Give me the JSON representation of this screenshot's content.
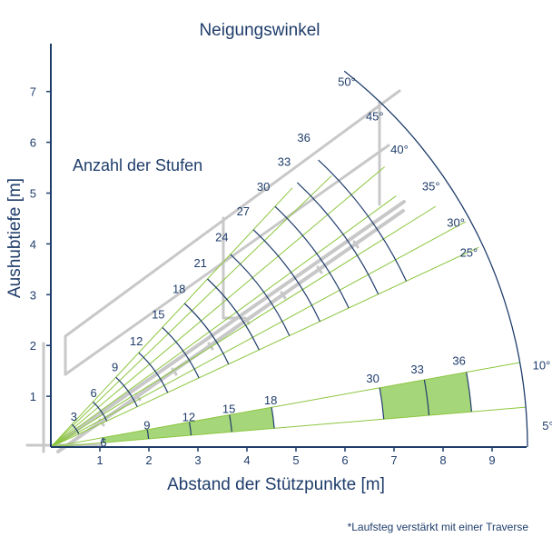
{
  "title": "Neigungswinkel",
  "ylabel": "Aushubtiefe [m]",
  "xlabel": "Abstand der Stützpunkte [m]",
  "steps_label": "Anzahl der Stufen",
  "footnote": "*Laufsteg verstärkt mit einer Traverse",
  "colors": {
    "navy": "#1f3d6b",
    "green_line": "#8cc63f",
    "green_fill": "#a6d67a",
    "frame_grey": "#c8c8c8"
  },
  "x_ticks": [
    "1",
    "2",
    "3",
    "4",
    "5",
    "6",
    "7",
    "8",
    "9"
  ],
  "y_ticks": [
    "1",
    "2",
    "3",
    "4",
    "5",
    "6",
    "7"
  ],
  "angle_labels": [
    "5°",
    "10°",
    "25°",
    "30°",
    "35°",
    "40°",
    "45°",
    "50°"
  ],
  "steep_step_labels": [
    "3",
    "6",
    "9",
    "12",
    "15",
    "18",
    "21",
    "24",
    "27",
    "30",
    "33",
    "36"
  ],
  "flat_step_labels_low": [
    "6",
    "9",
    "12",
    "15",
    "18"
  ],
  "flat_step_labels_high": [
    "30",
    "33",
    "36"
  ]
}
